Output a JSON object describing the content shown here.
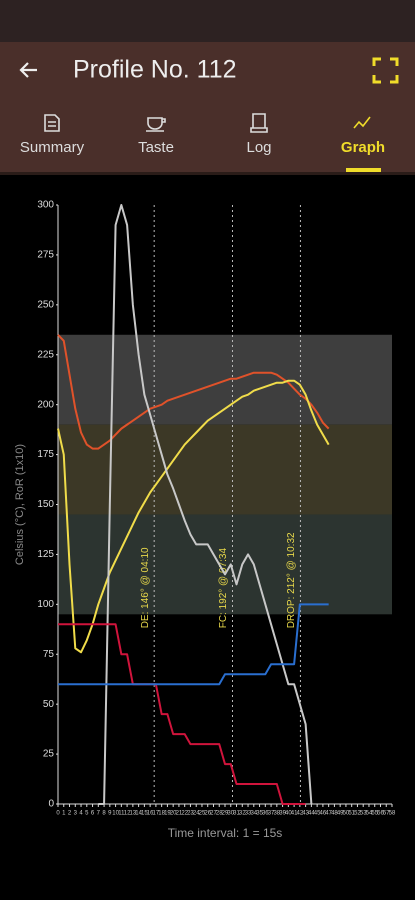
{
  "app_bar": {
    "title": "Profile No. 112"
  },
  "tabs": [
    "Summary",
    "Taste",
    "Log",
    "Graph"
  ],
  "selected_tab": 3,
  "chart_data": {
    "type": "line",
    "ylabel": "Celsius (°C), RoR (1x10)",
    "xlabel": "Time interval: 1 = 15s",
    "xlim": [
      0,
      58
    ],
    "ylim": [
      0,
      300
    ],
    "yticks": [
      0,
      25,
      50,
      75,
      100,
      125,
      150,
      175,
      200,
      225,
      250,
      275,
      300
    ],
    "xticks": [
      0,
      1,
      2,
      3,
      4,
      5,
      6,
      7,
      8,
      9,
      10,
      11,
      12,
      13,
      14,
      15,
      16,
      17,
      18,
      19,
      20,
      21,
      22,
      23,
      24,
      25,
      26,
      27,
      28,
      29,
      30,
      31,
      32,
      33,
      34,
      35,
      36,
      37,
      38,
      39,
      40,
      41,
      42,
      43,
      44,
      45,
      46,
      47,
      48,
      49,
      50,
      51,
      52,
      53,
      54,
      55,
      56,
      57,
      58
    ],
    "bands": [
      {
        "from": 190,
        "to": 235,
        "color": "#3e3e3e"
      },
      {
        "from": 145,
        "to": 190,
        "color": "#3c3826"
      },
      {
        "from": 95,
        "to": 145,
        "color": "#2c3430"
      }
    ],
    "annotations": [
      {
        "x": 16.7,
        "label": "DE: 146° @ 04:10"
      },
      {
        "x": 30.3,
        "label": "FC: 192° @ 07:34"
      },
      {
        "x": 42.1,
        "label": "DROP: 212° @ 10:32"
      }
    ],
    "x": [
      0,
      1,
      2,
      3,
      4,
      5,
      6,
      7,
      8,
      9,
      10,
      11,
      12,
      13,
      14,
      15,
      16,
      17,
      18,
      19,
      20,
      21,
      22,
      23,
      24,
      25,
      26,
      27,
      28,
      29,
      30,
      31,
      32,
      33,
      34,
      35,
      36,
      37,
      38,
      39,
      40,
      41,
      42,
      43,
      44,
      45,
      46,
      47
    ],
    "series": [
      {
        "color": "#e0522a",
        "values": [
          235,
          232,
          215,
          198,
          186,
          180,
          178,
          178,
          180,
          182,
          185,
          188,
          190,
          192,
          194,
          196,
          198,
          199,
          200,
          202,
          203,
          204,
          205,
          206,
          207,
          208,
          209,
          210,
          211,
          212,
          213,
          213,
          214,
          215,
          216,
          216,
          216,
          216,
          215,
          213,
          211,
          208,
          205,
          203,
          200,
          196,
          191,
          188
        ]
      },
      {
        "color": "#f0dc4a",
        "values": [
          188,
          175,
          120,
          78,
          76,
          82,
          90,
          100,
          108,
          116,
          122,
          128,
          134,
          140,
          146,
          151,
          156,
          160,
          164,
          168,
          172,
          176,
          180,
          183,
          186,
          189,
          192,
          194,
          196,
          198,
          200,
          202,
          204,
          205,
          207,
          208,
          209,
          210,
          211,
          211,
          212,
          212,
          210,
          205,
          197,
          190,
          185,
          180
        ]
      },
      {
        "color": "#c8c8c8",
        "values": [
          null,
          null,
          null,
          null,
          null,
          null,
          null,
          0,
          0,
          150,
          290,
          300,
          290,
          250,
          225,
          205,
          195,
          185,
          175,
          165,
          158,
          150,
          142,
          135,
          130,
          130,
          130,
          125,
          120,
          115,
          120,
          110,
          120,
          125,
          120,
          110,
          100,
          90,
          80,
          70,
          60,
          60,
          50,
          40,
          0,
          null,
          null,
          null
        ]
      },
      {
        "color": "#d0143c",
        "values": [
          90,
          90,
          90,
          90,
          90,
          90,
          90,
          90,
          90,
          90,
          90,
          75,
          75,
          60,
          60,
          60,
          60,
          60,
          45,
          45,
          35,
          35,
          35,
          30,
          30,
          30,
          30,
          30,
          30,
          20,
          20,
          10,
          10,
          10,
          10,
          10,
          10,
          10,
          10,
          0,
          0,
          0,
          0,
          0,
          null,
          null,
          null,
          null
        ]
      },
      {
        "color": "#2a6fd0",
        "values": [
          60,
          60,
          60,
          60,
          60,
          60,
          60,
          60,
          60,
          60,
          60,
          60,
          60,
          60,
          60,
          60,
          60,
          60,
          60,
          60,
          60,
          60,
          60,
          60,
          60,
          60,
          60,
          60,
          60,
          65,
          65,
          65,
          65,
          65,
          65,
          65,
          65,
          70,
          70,
          70,
          70,
          70,
          100,
          100,
          100,
          100,
          100,
          100
        ]
      }
    ]
  }
}
